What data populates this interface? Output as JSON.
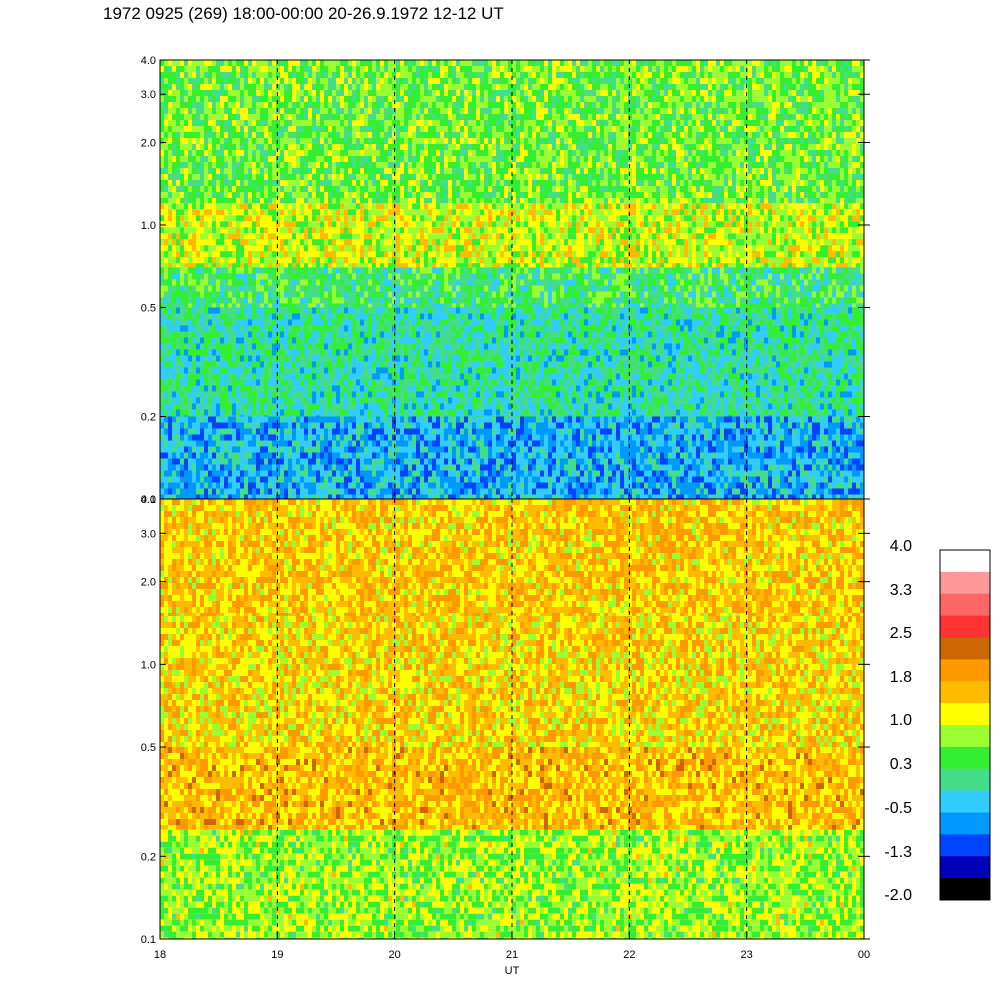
{
  "header": {
    "title": "1972 0925 (269) 18:00-00:00 20-26.9.1972  12-12 UT"
  },
  "chart_data": [
    {
      "type": "heatmap",
      "panel": "upper",
      "x_ticks": [
        "18",
        "19",
        "20",
        "21",
        "22",
        "23",
        "00"
      ],
      "y_ticks": [
        "0.1",
        "0.2",
        "0.5",
        "1.0",
        "2.0",
        "3.0",
        "4.0"
      ],
      "y_tick_values": [
        0.1,
        0.2,
        0.5,
        1.0,
        2.0,
        3.0,
        4.0
      ],
      "ylim": [
        0.1,
        4.0
      ],
      "y_scale": "log",
      "xlim": [
        18,
        24
      ],
      "grid": "vertical dashed lines at each hour",
      "description_bands": [
        {
          "y_range": [
            0.1,
            0.2
          ],
          "value_level": -0.5
        },
        {
          "y_range": [
            0.2,
            0.5
          ],
          "value_level": 0.0
        },
        {
          "y_range": [
            0.5,
            0.9
          ],
          "value_level": 0.3
        },
        {
          "y_range": [
            0.7,
            1.2
          ],
          "value_level": 1.0
        },
        {
          "y_range": [
            1.2,
            4.0
          ],
          "value_level": 0.6
        }
      ]
    },
    {
      "type": "heatmap",
      "panel": "lower",
      "x_ticks": [
        "18",
        "19",
        "20",
        "21",
        "22",
        "23",
        "00"
      ],
      "y_ticks": [
        "0.1",
        "0.2",
        "0.5",
        "1.0",
        "2.0",
        "3.0",
        "4.0"
      ],
      "y_tick_values": [
        0.1,
        0.2,
        0.5,
        1.0,
        2.0,
        3.0,
        4.0
      ],
      "ylim": [
        0.1,
        4.0
      ],
      "y_scale": "log",
      "xlim": [
        18,
        24
      ],
      "xlabel": "UT",
      "grid": "vertical dashed lines at each hour",
      "description_bands": [
        {
          "y_range": [
            0.1,
            0.25
          ],
          "value_level": 0.8
        },
        {
          "y_range": [
            0.25,
            0.5
          ],
          "value_level": 1.6
        },
        {
          "y_range": [
            0.5,
            1.5
          ],
          "value_level": 1.4
        },
        {
          "y_range": [
            1.5,
            4.0
          ],
          "value_level": 1.5
        }
      ]
    }
  ],
  "colorbar": {
    "labels": [
      "4.0",
      "3.3",
      "2.5",
      "1.8",
      "1.0",
      "0.3",
      "-0.5",
      "-1.3",
      "-2.0"
    ],
    "colors": [
      "#ffffff",
      "#ff9999",
      "#ff6666",
      "#ff3333",
      "#cc6600",
      "#ff9900",
      "#ffbb00",
      "#ffff00",
      "#99ff33",
      "#33ee33",
      "#44dd88",
      "#33ccff",
      "#0099ff",
      "#0044ff",
      "#0000bb",
      "#000000"
    ]
  }
}
